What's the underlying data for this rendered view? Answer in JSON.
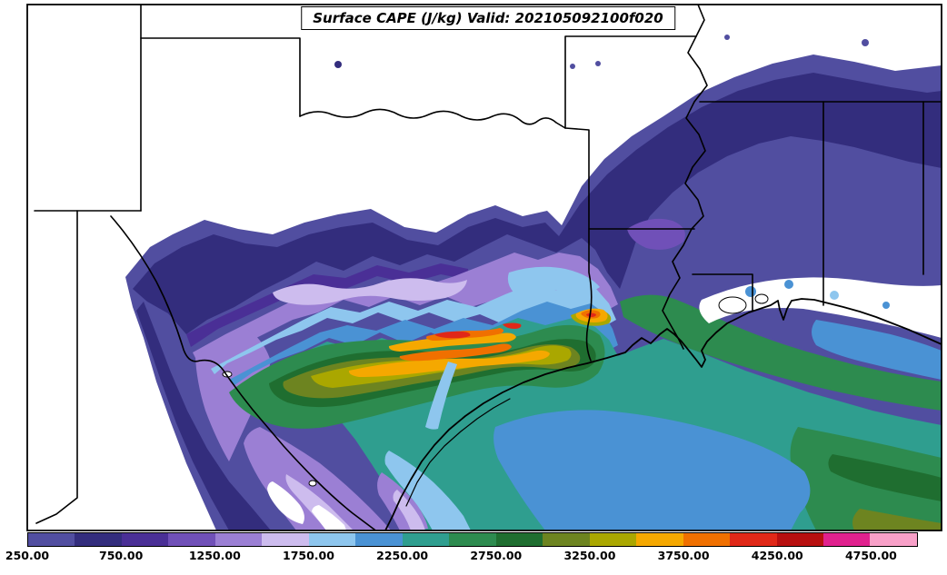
{
  "title_box": {
    "text": "Surface CAPE (J/kg) Valid: 202105092100f020"
  },
  "colorbar": {
    "min": 250,
    "max": 5000,
    "interval": 250,
    "tick_labels": [
      "250.00",
      "750.00",
      "1250.00",
      "1750.00",
      "2250.00",
      "2750.00",
      "3250.00",
      "3750.00",
      "4250.00",
      "4750.00"
    ],
    "colors": [
      "#514ea0",
      "#332d7d",
      "#4a2f96",
      "#7050b8",
      "#9b7fd4",
      "#cdbcee",
      "#8ec6ee",
      "#4a92d4",
      "#2f9e8f",
      "#2d8b4f",
      "#1f6e30",
      "#6d8420",
      "#aaa700",
      "#f5a800",
      "#f07000",
      "#e02818",
      "#b81010",
      "#e0218e",
      "#f8a0c8"
    ]
  },
  "chart_data": {
    "type": "heatmap",
    "title": "Surface CAPE (J/kg) Valid: 202105092100f020",
    "variable": "Surface CAPE",
    "units": "J/kg",
    "valid_time_label": "202105092100f020",
    "contour_interval": 250,
    "levels": [
      250,
      500,
      750,
      1000,
      1250,
      1500,
      1750,
      2000,
      2250,
      2500,
      2750,
      3000,
      3250,
      3500,
      3750,
      4000,
      4250,
      4500,
      4750
    ],
    "palette": [
      "#514ea0",
      "#332d7d",
      "#4a2f96",
      "#7050b8",
      "#9b7fd4",
      "#cdbcee",
      "#8ec6ee",
      "#4a92d4",
      "#2f9e8f",
      "#2d8b4f",
      "#1f6e30",
      "#6d8420",
      "#aaa700",
      "#f5a800",
      "#f07000",
      "#e02818",
      "#b81010",
      "#e0218e",
      "#f8a0c8"
    ],
    "colorbar_tick_labels": [
      "250.00",
      "750.00",
      "1250.00",
      "1750.00",
      "2250.00",
      "2750.00",
      "3250.00",
      "3750.00",
      "4250.00",
      "4750.00"
    ],
    "field_summary": [
      {
        "region": "broad northeast band across Oklahoma/Arkansas into Tennessee valley",
        "approx_cape_jkg": "250-1000"
      },
      {
        "region": "west Texas and Rio Grande corridor",
        "approx_cape_jkg": "250-1750"
      },
      {
        "region": "central/east Texas inland corridor",
        "approx_cape_jkg": "2500-4000"
      },
      {
        "region": "embedded maxima southeast Texas and near Texas-Louisiana border",
        "approx_cape_jkg": "3500-4000"
      },
      {
        "region": "Gulf of Mexico offshore waters",
        "approx_cape_jkg": "1750-3250"
      },
      {
        "region": "south Texas coastal pocket",
        "approx_cape_jkg": "250-1750"
      },
      {
        "region": "inland Mississippi/Alabama gap",
        "approx_cape_jkg": "below 250"
      }
    ]
  }
}
